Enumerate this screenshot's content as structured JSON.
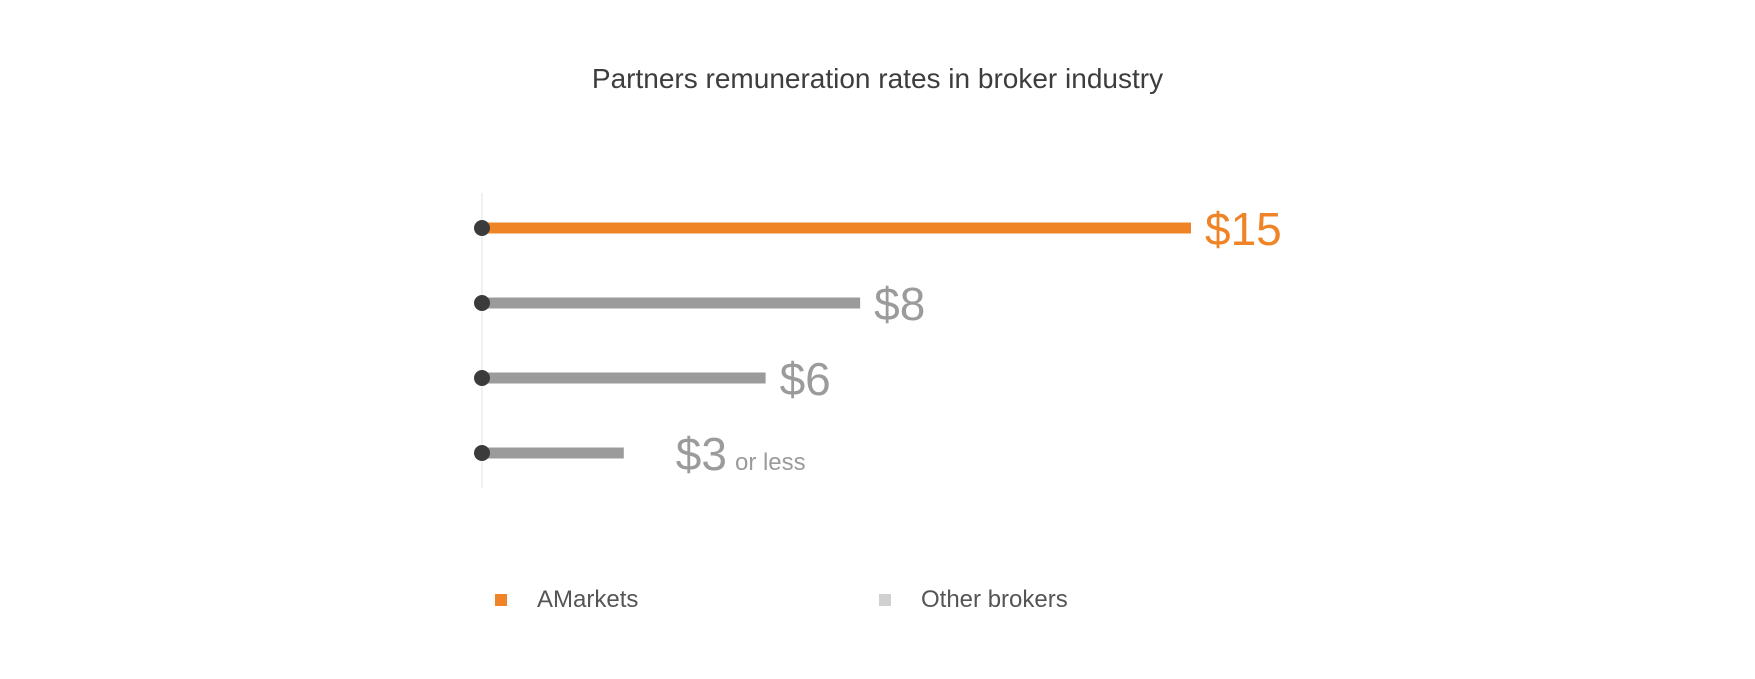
{
  "chart_data": {
    "type": "bar",
    "title": "Partners remuneration rates in broker industry",
    "orientation": "horizontal",
    "categories": [
      "AMarkets",
      "Other brokers",
      "Other brokers",
      "Other brokers"
    ],
    "values": [
      15,
      8,
      6,
      3
    ],
    "value_labels": [
      "$15",
      "$8",
      "$6",
      "$3"
    ],
    "label_suffixes": [
      "",
      "",
      "",
      "or less"
    ],
    "xlim": [
      0,
      15
    ],
    "grid": false,
    "legend": {
      "placement": "bottom",
      "items": [
        {
          "label": "AMarkets",
          "color": "#ef8427"
        },
        {
          "label": "Other brokers",
          "color": "#d0d0d0"
        }
      ]
    },
    "colors": {
      "highlight": "#ef8427",
      "other": "#9b9b9b",
      "dot": "#3b3b3b",
      "axis": "#e3e3e3"
    }
  }
}
